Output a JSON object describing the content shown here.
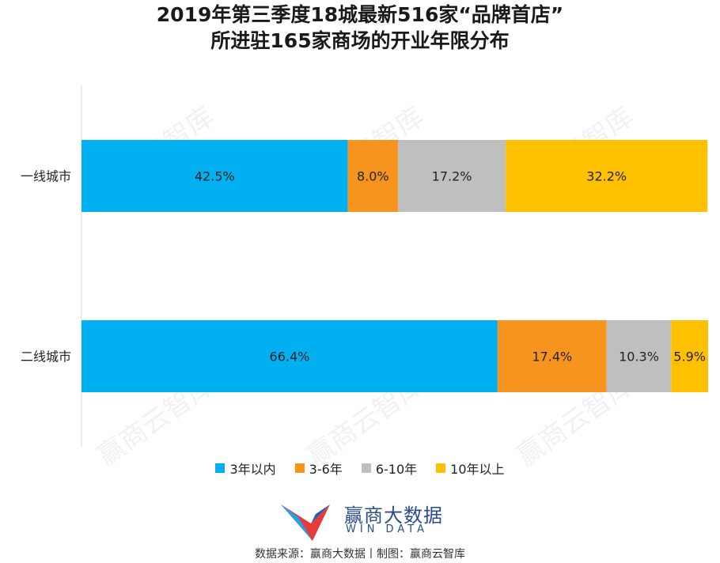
{
  "title": {
    "line1": "2019年第三季度18城最新516家“品牌首店”",
    "line2": "所进驻165家商场的开业年限分布"
  },
  "chart_data": {
    "type": "bar",
    "orientation": "horizontal",
    "stacked": "percent",
    "categories": [
      "一线城市",
      "二线城市"
    ],
    "series": [
      {
        "name": "3年以内",
        "color": "#00b0f0",
        "values": [
          42.5,
          66.4
        ]
      },
      {
        "name": "3-6年",
        "color": "#f7941d",
        "values": [
          8.0,
          17.4
        ]
      },
      {
        "name": "6-10年",
        "color": "#bfbfbf",
        "values": [
          17.2,
          10.3
        ]
      },
      {
        "name": "10年以上",
        "color": "#ffc000",
        "values": [
          32.2,
          5.9
        ]
      }
    ],
    "value_labels": [
      [
        "42.5%",
        "66.4%"
      ],
      [
        "8.0%",
        "17.4%"
      ],
      [
        "17.2%",
        "10.3%"
      ],
      [
        "32.2%",
        "5.9%"
      ]
    ],
    "xlim": [
      0,
      100
    ],
    "grid": false,
    "legend_position": "bottom"
  },
  "legend": [
    {
      "label": "3年以内",
      "color": "#00b0f0"
    },
    {
      "label": "3-6年",
      "color": "#f7941d"
    },
    {
      "label": "6-10年",
      "color": "#bfbfbf"
    },
    {
      "label": "10年以上",
      "color": "#ffc000"
    }
  ],
  "brand": {
    "name_cn": "赢商大数据",
    "name_en": "WIN DATA"
  },
  "source": "数据来源：赢商大数据丨制图：赢商云智库",
  "watermark": "赢商云智库",
  "logo_icon": "win-data-logo-icon"
}
